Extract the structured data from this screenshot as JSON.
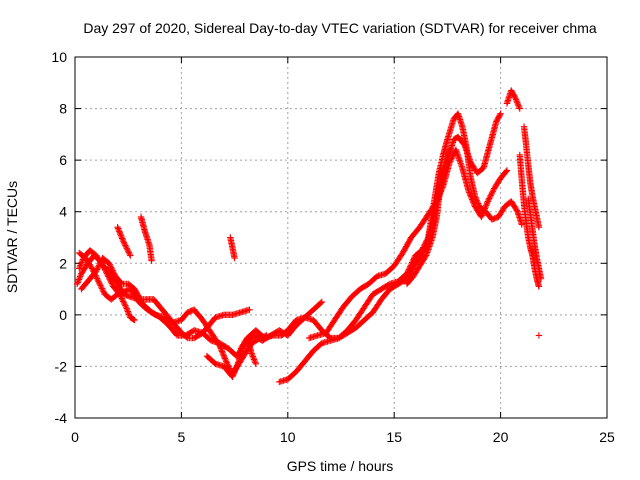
{
  "chart_data": {
    "type": "scatter",
    "title": "Day 297 of 2020, Sidereal Day-to-day VTEC variation (SDTVAR) for receiver chma",
    "xlabel": "GPS time / hours",
    "ylabel": "SDTVAR / TECUs",
    "xlim": [
      0,
      25
    ],
    "ylim": [
      -4,
      10
    ],
    "xticks": [
      0,
      5,
      10,
      15,
      20,
      25
    ],
    "yticks": [
      -4,
      -2,
      0,
      2,
      4,
      6,
      8,
      10
    ],
    "grid": true,
    "marker": "+",
    "series": [
      {
        "name": "SDTVAR",
        "color": "#ff0000",
        "tracks": [
          [
            [
              0.2,
              1.8
            ],
            [
              0.4,
              2.2
            ],
            [
              0.7,
              2.5
            ],
            [
              1.0,
              2.3
            ],
            [
              1.3,
              1.9
            ],
            [
              1.6,
              1.7
            ],
            [
              2.0,
              1.2
            ],
            [
              2.3,
              0.8
            ],
            [
              2.6,
              0.7
            ],
            [
              3.0,
              0.6
            ],
            [
              3.3,
              0.6
            ],
            [
              3.7,
              0.6
            ],
            [
              4.0,
              0.3
            ],
            [
              4.3,
              0.0
            ],
            [
              4.7,
              -0.4
            ],
            [
              5.0,
              -0.7
            ],
            [
              5.3,
              -0.9
            ],
            [
              5.6,
              -0.9
            ],
            [
              6.0,
              -0.7
            ],
            [
              6.3,
              -0.4
            ],
            [
              6.6,
              -0.1
            ],
            [
              7.0,
              0.0
            ],
            [
              7.4,
              0.0
            ],
            [
              7.8,
              0.1
            ],
            [
              8.2,
              0.2
            ]
          ],
          [
            [
              0.1,
              1.2
            ],
            [
              0.3,
              1.6
            ],
            [
              0.6,
              2.0
            ],
            [
              0.9,
              2.3
            ],
            [
              1.2,
              2.1
            ],
            [
              1.5,
              1.6
            ],
            [
              1.8,
              1.1
            ],
            [
              2.1,
              0.8
            ],
            [
              2.4,
              0.3
            ],
            [
              2.6,
              -0.1
            ],
            [
              2.8,
              -0.2
            ]
          ],
          [
            [
              0.2,
              2.4
            ],
            [
              0.5,
              2.2
            ],
            [
              0.8,
              1.8
            ],
            [
              1.1,
              1.3
            ],
            [
              1.4,
              0.8
            ],
            [
              1.7,
              0.6
            ],
            [
              2.0,
              0.8
            ],
            [
              2.3,
              0.9
            ],
            [
              2.6,
              1.0
            ],
            [
              3.0,
              0.5
            ],
            [
              3.4,
              0.2
            ],
            [
              3.8,
              0.0
            ],
            [
              4.2,
              -0.1
            ],
            [
              4.6,
              -0.3
            ],
            [
              5.0,
              -0.2
            ],
            [
              5.3,
              0.1
            ],
            [
              5.6,
              0.2
            ],
            [
              6.0,
              -0.2
            ],
            [
              6.4,
              -0.7
            ],
            [
              6.8,
              -1.2
            ],
            [
              7.1,
              -1.8
            ],
            [
              7.4,
              -2.3
            ],
            [
              7.7,
              -1.9
            ],
            [
              8.0,
              -1.5
            ],
            [
              8.3,
              -1.1
            ],
            [
              8.7,
              -0.9
            ],
            [
              9.0,
              -0.8
            ]
          ],
          [
            [
              0.3,
              1.0
            ],
            [
              0.6,
              1.3
            ],
            [
              1.0,
              1.7
            ],
            [
              1.3,
              2.2
            ],
            [
              1.6,
              2.0
            ],
            [
              1.9,
              1.5
            ],
            [
              2.2,
              1.2
            ],
            [
              2.5,
              1.2
            ],
            [
              2.8,
              1.0
            ],
            [
              3.2,
              0.4
            ],
            [
              3.6,
              0.1
            ],
            [
              4.0,
              -0.1
            ],
            [
              4.4,
              -0.4
            ],
            [
              4.8,
              -0.8
            ],
            [
              5.2,
              -0.8
            ],
            [
              5.6,
              -0.6
            ],
            [
              6.0,
              -0.7
            ],
            [
              6.4,
              -1.0
            ],
            [
              6.8,
              -1.1
            ],
            [
              7.2,
              -1.3
            ],
            [
              7.6,
              -1.6
            ],
            [
              8.0,
              -1.1
            ],
            [
              8.4,
              -0.8
            ],
            [
              8.8,
              -1.0
            ],
            [
              9.2,
              -0.8
            ],
            [
              9.6,
              -0.6
            ],
            [
              10.0,
              -0.8
            ],
            [
              10.4,
              -0.4
            ],
            [
              10.8,
              -0.1
            ],
            [
              11.2,
              0.2
            ],
            [
              11.6,
              0.5
            ]
          ],
          [
            [
              2.0,
              3.4
            ],
            [
              2.3,
              2.8
            ],
            [
              2.6,
              2.3
            ]
          ],
          [
            [
              3.1,
              3.8
            ],
            [
              3.3,
              3.2
            ],
            [
              3.5,
              2.7
            ],
            [
              3.6,
              2.1
            ]
          ],
          [
            [
              7.3,
              3.0
            ],
            [
              7.4,
              2.6
            ],
            [
              7.5,
              2.2
            ]
          ],
          [
            [
              6.2,
              -1.6
            ],
            [
              6.6,
              -1.9
            ],
            [
              7.0,
              -2.0
            ],
            [
              7.4,
              -2.4
            ],
            [
              7.7,
              -1.8
            ],
            [
              7.9,
              -1.2
            ],
            [
              8.1,
              -0.9
            ],
            [
              8.3,
              -1.5
            ],
            [
              8.5,
              -1.9
            ]
          ],
          [
            [
              7.8,
              -1.3
            ],
            [
              8.1,
              -0.9
            ],
            [
              8.5,
              -0.6
            ],
            [
              8.9,
              -0.9
            ],
            [
              9.3,
              -0.8
            ],
            [
              9.7,
              -0.8
            ],
            [
              10.0,
              -0.6
            ],
            [
              10.4,
              -0.2
            ],
            [
              10.8,
              -0.1
            ],
            [
              11.2,
              -0.2
            ],
            [
              11.6,
              -0.6
            ],
            [
              12.0,
              -0.9
            ],
            [
              12.4,
              -0.9
            ],
            [
              12.8,
              -0.7
            ],
            [
              13.2,
              -0.5
            ],
            [
              13.6,
              -0.2
            ],
            [
              14.0,
              0.1
            ],
            [
              14.4,
              0.6
            ],
            [
              14.8,
              1.0
            ],
            [
              15.2,
              1.2
            ],
            [
              15.6,
              1.4
            ],
            [
              16.0,
              2.0
            ],
            [
              16.3,
              2.3
            ],
            [
              16.6,
              2.9
            ],
            [
              16.9,
              4.0
            ],
            [
              17.2,
              5.0
            ],
            [
              17.5,
              6.0
            ],
            [
              17.8,
              6.8
            ],
            [
              18.0,
              6.9
            ],
            [
              18.3,
              6.6
            ],
            [
              18.6,
              5.9
            ],
            [
              18.9,
              5.5
            ],
            [
              19.2,
              5.7
            ],
            [
              19.5,
              6.6
            ],
            [
              19.8,
              7.5
            ],
            [
              20.0,
              7.8
            ]
          ],
          [
            [
              9.6,
              -2.6
            ],
            [
              10.0,
              -2.5
            ],
            [
              10.4,
              -2.2
            ],
            [
              10.8,
              -1.8
            ],
            [
              11.2,
              -1.4
            ],
            [
              11.6,
              -1.1
            ],
            [
              12.0,
              -1.0
            ],
            [
              12.4,
              -0.9
            ],
            [
              12.8,
              -0.6
            ],
            [
              13.2,
              -0.2
            ],
            [
              13.6,
              0.3
            ],
            [
              14.0,
              0.8
            ],
            [
              14.4,
              1.0
            ],
            [
              14.8,
              1.2
            ],
            [
              15.2,
              1.3
            ],
            [
              15.6,
              1.6
            ],
            [
              16.0,
              2.3
            ],
            [
              16.3,
              2.5
            ],
            [
              16.6,
              3.0
            ],
            [
              16.9,
              4.5
            ],
            [
              17.1,
              5.5
            ],
            [
              17.3,
              6.2
            ],
            [
              17.5,
              6.8
            ],
            [
              17.8,
              7.6
            ],
            [
              18.0,
              7.8
            ],
            [
              18.2,
              7.3
            ],
            [
              18.4,
              6.5
            ],
            [
              18.6,
              5.3
            ],
            [
              18.8,
              4.6
            ],
            [
              19.0,
              4.2
            ],
            [
              19.3,
              4.0
            ],
            [
              19.6,
              3.7
            ],
            [
              19.9,
              3.8
            ],
            [
              20.2,
              4.2
            ],
            [
              20.5,
              4.4
            ],
            [
              20.8,
              4.0
            ],
            [
              21.0,
              3.5
            ]
          ],
          [
            [
              11.0,
              -0.9
            ],
            [
              11.4,
              -0.8
            ],
            [
              11.8,
              -0.7
            ],
            [
              12.2,
              -0.2
            ],
            [
              12.6,
              0.3
            ],
            [
              13.0,
              0.7
            ],
            [
              13.4,
              1.0
            ],
            [
              13.8,
              1.2
            ],
            [
              14.2,
              1.5
            ],
            [
              14.6,
              1.6
            ],
            [
              15.0,
              1.9
            ],
            [
              15.4,
              2.4
            ],
            [
              15.8,
              3.0
            ],
            [
              16.2,
              3.4
            ],
            [
              16.6,
              3.9
            ],
            [
              17.0,
              4.4
            ],
            [
              17.3,
              5.0
            ],
            [
              17.6,
              5.9
            ],
            [
              17.9,
              6.4
            ],
            [
              18.2,
              5.7
            ],
            [
              18.5,
              4.8
            ],
            [
              18.8,
              4.2
            ],
            [
              19.1,
              3.8
            ],
            [
              19.4,
              4.4
            ],
            [
              19.7,
              4.9
            ],
            [
              20.0,
              5.3
            ],
            [
              20.3,
              5.6
            ]
          ],
          [
            [
              15.6,
              1.2
            ],
            [
              15.9,
              1.5
            ],
            [
              16.2,
              1.9
            ],
            [
              16.5,
              2.3
            ],
            [
              16.8,
              3.0
            ],
            [
              17.0,
              3.8
            ],
            [
              17.2,
              5.2
            ],
            [
              17.4,
              5.8
            ],
            [
              17.6,
              6.4
            ]
          ],
          [
            [
              20.3,
              8.2
            ],
            [
              20.5,
              8.7
            ],
            [
              20.7,
              8.4
            ],
            [
              20.9,
              8.0
            ]
          ],
          [
            [
              20.9,
              6.2
            ],
            [
              21.0,
              5.2
            ],
            [
              21.1,
              4.3
            ],
            [
              21.2,
              3.6
            ],
            [
              21.3,
              3.0
            ],
            [
              21.4,
              2.6
            ],
            [
              21.5,
              2.3
            ],
            [
              21.6,
              1.8
            ],
            [
              21.7,
              1.4
            ],
            [
              21.8,
              1.1
            ]
          ],
          [
            [
              21.1,
              7.3
            ],
            [
              21.2,
              6.6
            ],
            [
              21.3,
              5.8
            ],
            [
              21.4,
              5.1
            ],
            [
              21.5,
              4.6
            ],
            [
              21.6,
              4.2
            ],
            [
              21.7,
              3.8
            ],
            [
              21.8,
              3.4
            ]
          ],
          [
            [
              21.3,
              4.5
            ],
            [
              21.4,
              3.9
            ],
            [
              21.5,
              3.3
            ],
            [
              21.6,
              2.7
            ],
            [
              21.7,
              2.2
            ],
            [
              21.8,
              1.8
            ],
            [
              21.9,
              1.4
            ]
          ],
          [
            [
              21.8,
              -0.8
            ]
          ]
        ]
      }
    ]
  }
}
